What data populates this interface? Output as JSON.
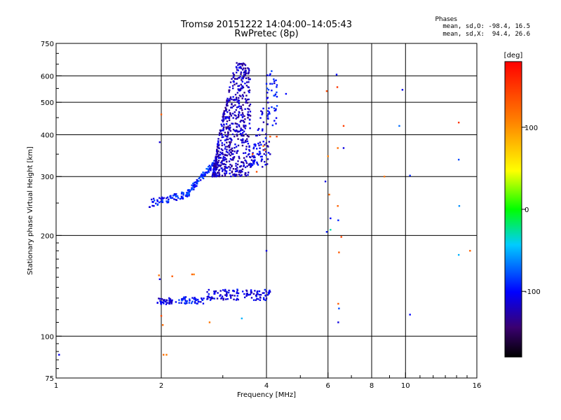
{
  "chart_data": {
    "type": "scatter",
    "title": "Tromsø 20151222 14:04:00–14:05:43",
    "subtitle": "RwPretec (8p)",
    "xlabel": "Frequency [MHz]",
    "ylabel": "Stationary phase Virtual Height [km]",
    "x_scale": "log",
    "y_scale": "log",
    "xlim": [
      1,
      16
    ],
    "ylim": [
      75,
      750
    ],
    "x_ticks": [
      1,
      2,
      4,
      6,
      8,
      10,
      16
    ],
    "y_ticks": [
      75,
      100,
      200,
      300,
      400,
      500,
      600,
      750
    ],
    "grid": true,
    "phases": {
      "title": "Phases",
      "line_o": "mean, sd,O: -98.4, 16.5",
      "line_x": "mean, sd,X:  94.4, 26.6"
    },
    "colorbar": {
      "label": "[deg]",
      "range": [
        -180,
        180
      ],
      "ticks": [
        100,
        0,
        -100
      ],
      "tick_labels": [
        "100",
        "0",
        "-100"
      ]
    },
    "clusters": [
      {
        "name": "lower",
        "x_range": [
          1.95,
          2.15
        ],
        "h_range": [
          124,
          130
        ],
        "phase": -112,
        "count": 40
      },
      {
        "name": "lower",
        "x_range": [
          2.2,
          2.65
        ],
        "h_range": [
          125,
          131
        ],
        "phase": -100,
        "count": 45
      },
      {
        "name": "lower",
        "x_range": [
          2.7,
          4.1
        ],
        "h_range": [
          128,
          138
        ],
        "phase": -110,
        "count": 120
      },
      {
        "name": "trace",
        "x_range": [
          1.85,
          2.35
        ],
        "h_range": [
          250,
          265
        ],
        "phase": -95,
        "count": 60
      },
      {
        "name": "trace",
        "x_range": [
          2.35,
          2.85
        ],
        "h_range": [
          262,
          330
        ],
        "phase": -88,
        "count": 90
      },
      {
        "name": "cusp",
        "x_range": [
          2.8,
          3.6
        ],
        "h_range": [
          300,
          660
        ],
        "phase": -120,
        "count": 650
      },
      {
        "name": "cusp",
        "x_range": [
          3.6,
          4.1
        ],
        "h_range": [
          320,
          500
        ],
        "phase": -110,
        "count": 90
      },
      {
        "name": "upper",
        "x_range": [
          4.0,
          4.3
        ],
        "h_range": [
          420,
          640
        ],
        "phase": -100,
        "count": 40
      }
    ],
    "points": [
      {
        "x": 1.02,
        "y": 88,
        "phase": -105
      },
      {
        "x": 1.97,
        "y": 152,
        "phase": 120
      },
      {
        "x": 1.98,
        "y": 148,
        "phase": -110
      },
      {
        "x": 1.98,
        "y": 380,
        "phase": -115
      },
      {
        "x": 2.0,
        "y": 460,
        "phase": 130
      },
      {
        "x": 2.0,
        "y": 115,
        "phase": 140
      },
      {
        "x": 2.02,
        "y": 108,
        "phase": 120
      },
      {
        "x": 2.03,
        "y": 88,
        "phase": 120
      },
      {
        "x": 2.07,
        "y": 88,
        "phase": 110
      },
      {
        "x": 2.15,
        "y": 151,
        "phase": 130
      },
      {
        "x": 2.45,
        "y": 153,
        "phase": 125
      },
      {
        "x": 2.48,
        "y": 153,
        "phase": 110
      },
      {
        "x": 2.75,
        "y": 110,
        "phase": 115
      },
      {
        "x": 3.4,
        "y": 113,
        "phase": -50
      },
      {
        "x": 3.65,
        "y": 350,
        "phase": 145
      },
      {
        "x": 3.75,
        "y": 310,
        "phase": 135
      },
      {
        "x": 3.92,
        "y": 370,
        "phase": 120
      },
      {
        "x": 3.95,
        "y": 360,
        "phase": 125
      },
      {
        "x": 4.0,
        "y": 180,
        "phase": -110
      },
      {
        "x": 4.1,
        "y": 395,
        "phase": 130
      },
      {
        "x": 4.28,
        "y": 395,
        "phase": 140
      },
      {
        "x": 4.55,
        "y": 530,
        "phase": -100
      },
      {
        "x": 5.95,
        "y": 540,
        "phase": 140
      },
      {
        "x": 5.9,
        "y": 290,
        "phase": -110
      },
      {
        "x": 5.95,
        "y": 205,
        "phase": -95
      },
      {
        "x": 6.0,
        "y": 345,
        "phase": 110
      },
      {
        "x": 6.05,
        "y": 265,
        "phase": 120
      },
      {
        "x": 6.1,
        "y": 225,
        "phase": -100
      },
      {
        "x": 6.1,
        "y": 208,
        "phase": -30
      },
      {
        "x": 6.35,
        "y": 605,
        "phase": -100
      },
      {
        "x": 6.38,
        "y": 555,
        "phase": 150
      },
      {
        "x": 6.4,
        "y": 365,
        "phase": 120
      },
      {
        "x": 6.4,
        "y": 245,
        "phase": 125
      },
      {
        "x": 6.42,
        "y": 222,
        "phase": -90
      },
      {
        "x": 6.45,
        "y": 178,
        "phase": 130
      },
      {
        "x": 6.42,
        "y": 125,
        "phase": 130
      },
      {
        "x": 6.45,
        "y": 121,
        "phase": -80
      },
      {
        "x": 6.42,
        "y": 110,
        "phase": -110
      },
      {
        "x": 6.55,
        "y": 198,
        "phase": 140
      },
      {
        "x": 6.65,
        "y": 425,
        "phase": 145
      },
      {
        "x": 6.65,
        "y": 365,
        "phase": -110
      },
      {
        "x": 8.7,
        "y": 300,
        "phase": 115
      },
      {
        "x": 9.6,
        "y": 425,
        "phase": -70
      },
      {
        "x": 9.8,
        "y": 545,
        "phase": -105
      },
      {
        "x": 10.3,
        "y": 302,
        "phase": -90
      },
      {
        "x": 10.3,
        "y": 116,
        "phase": -100
      },
      {
        "x": 14.2,
        "y": 435,
        "phase": 150
      },
      {
        "x": 14.2,
        "y": 337,
        "phase": -80
      },
      {
        "x": 14.25,
        "y": 245,
        "phase": -60
      },
      {
        "x": 14.2,
        "y": 175,
        "phase": -50
      },
      {
        "x": 15.3,
        "y": 180,
        "phase": 125
      }
    ]
  }
}
